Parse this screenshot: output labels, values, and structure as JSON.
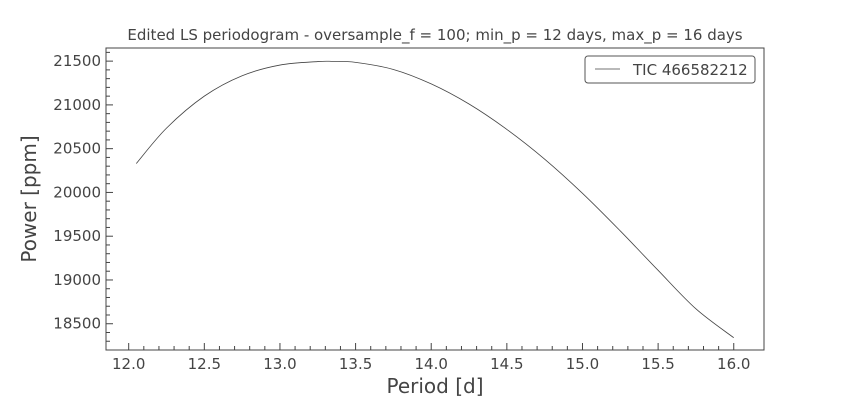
{
  "chart_data": {
    "type": "line",
    "title": "Edited LS periodogram - oversample_f = 100; min_p = 12 days, max_p = 16 days",
    "xlabel": "Period [d]",
    "ylabel": "Power [ppm]",
    "xlim": [
      11.85,
      16.2
    ],
    "ylim": [
      18200,
      21650
    ],
    "xticks": [
      12.0,
      12.5,
      13.0,
      13.5,
      14.0,
      14.5,
      15.0,
      15.5,
      16.0
    ],
    "xtick_labels": [
      "12.0",
      "12.5",
      "13.0",
      "13.5",
      "14.0",
      "14.5",
      "15.0",
      "15.5",
      "16.0"
    ],
    "yticks": [
      18500,
      19000,
      19500,
      20000,
      20500,
      21000,
      21500
    ],
    "ytick_labels": [
      "18500",
      "19000",
      "19500",
      "20000",
      "20500",
      "21000",
      "21500"
    ],
    "grid": false,
    "legend": {
      "position": "top-right"
    },
    "series": [
      {
        "name": "TIC 466582212",
        "color": "#444444",
        "x": [
          12.05,
          12.25,
          12.5,
          12.75,
          13.0,
          13.25,
          13.35,
          13.5,
          13.75,
          14.0,
          14.25,
          14.5,
          14.75,
          15.0,
          15.25,
          15.5,
          15.75,
          16.0
        ],
        "y": [
          20330,
          20735,
          21100,
          21333,
          21455,
          21495,
          21497,
          21486,
          21405,
          21240,
          21010,
          20720,
          20380,
          19990,
          19560,
          19110,
          18670,
          18340
        ]
      }
    ]
  }
}
